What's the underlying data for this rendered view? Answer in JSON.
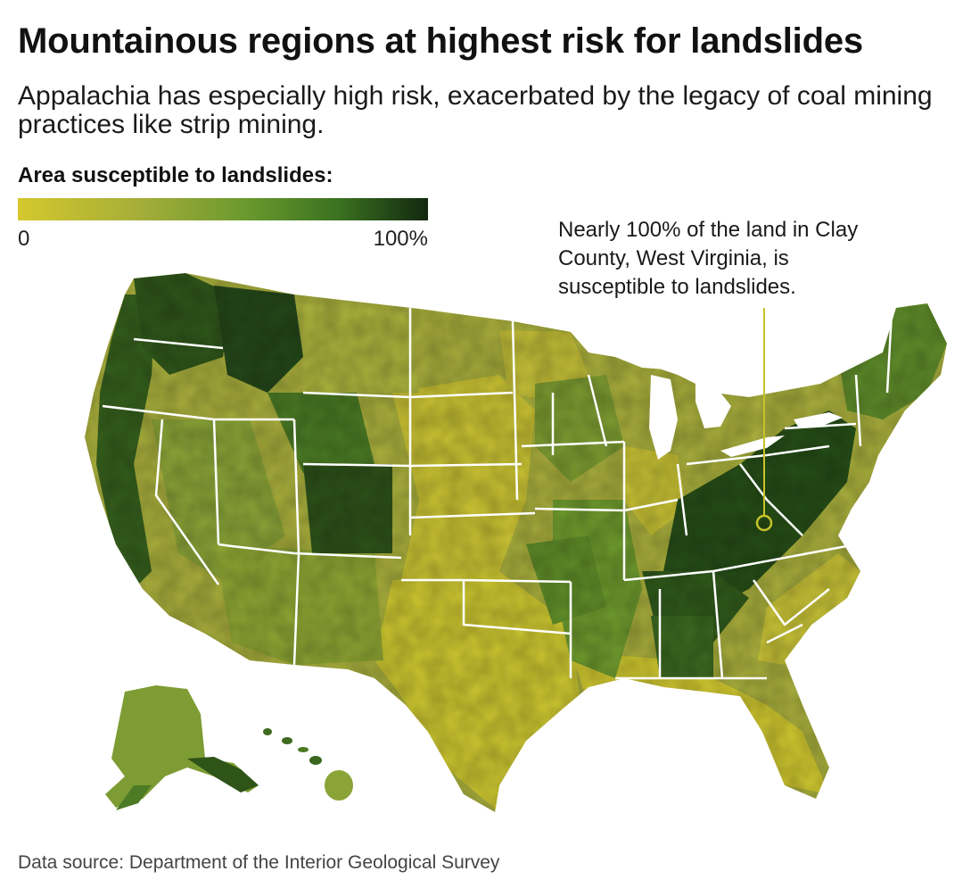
{
  "title": "Mountainous regions at highest risk for landslides",
  "subtitle": "Appalachia has especially high risk, exacerbated by the legacy of coal mining practices like strip mining.",
  "legend": {
    "title": "Area susceptible to landslides:",
    "min_label": "0",
    "max_label": "100%",
    "color_low": "#d4c82c",
    "color_high": "#122810"
  },
  "annotation": {
    "text": "Nearly 100% of the land in Clay County, West Virginia, is susceptible to landslides.",
    "marker_color": "#c8c22a"
  },
  "source": "Data source: Department of the Interior Geological Survey",
  "map": {
    "type": "choropleth",
    "geography": "US counties",
    "value_range": [
      0,
      100
    ],
    "unit": "%"
  }
}
